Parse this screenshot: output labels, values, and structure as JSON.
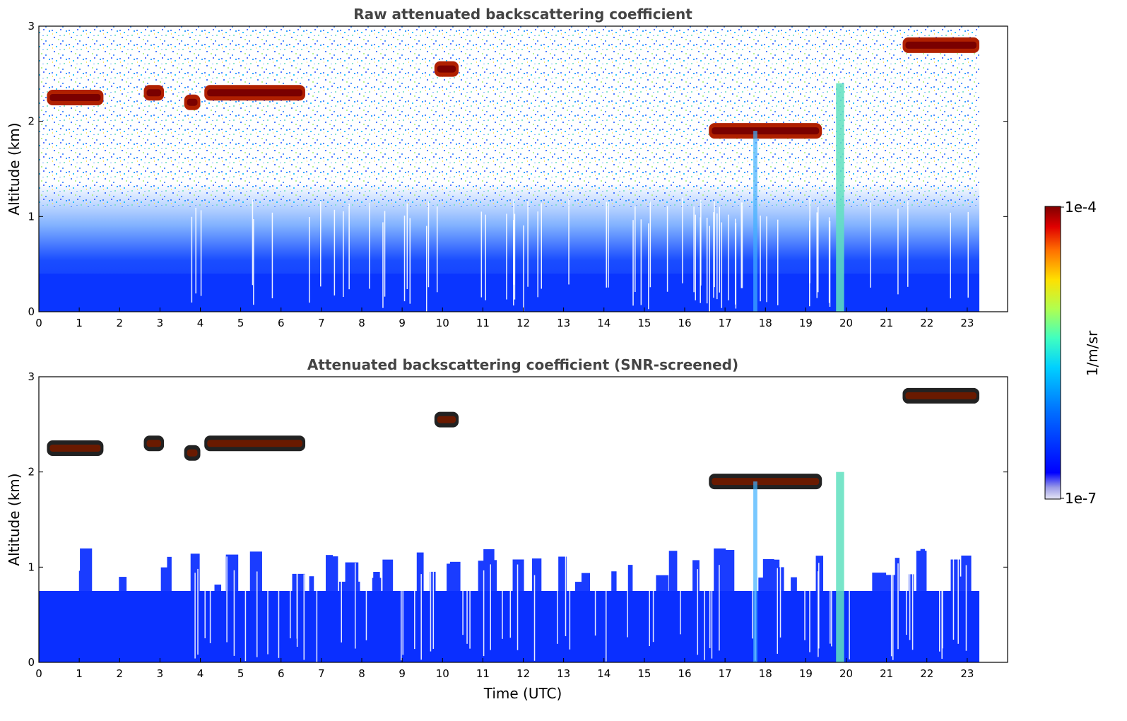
{
  "chart_data": [
    {
      "type": "heatmap",
      "title": "Raw attenuated backscattering coefficient",
      "xlabel": "",
      "ylabel": "Altitude (km)",
      "xlim": [
        0,
        24
      ],
      "ylim": [
        0,
        3
      ],
      "x_ticks": [
        0,
        1,
        2,
        3,
        4,
        5,
        6,
        7,
        8,
        9,
        10,
        11,
        12,
        13,
        14,
        15,
        16,
        17,
        18,
        19,
        20,
        21,
        22,
        23
      ],
      "y_ticks": [
        0,
        1,
        2,
        3
      ],
      "data_end_hour": 23.3,
      "grid": false,
      "features": {
        "boundary_layer_top_km": 0.4,
        "noise_floor_km": 1.0,
        "cloud_layers": [
          {
            "t_start": 0.2,
            "t_end": 1.6,
            "alt_km": 2.25
          },
          {
            "t_start": 2.6,
            "t_end": 3.1,
            "alt_km": 2.3
          },
          {
            "t_start": 3.6,
            "t_end": 4.0,
            "alt_km": 2.2
          },
          {
            "t_start": 4.1,
            "t_end": 6.6,
            "alt_km": 2.3
          },
          {
            "t_start": 9.8,
            "t_end": 10.4,
            "alt_km": 2.55
          },
          {
            "t_start": 16.6,
            "t_end": 19.4,
            "alt_km": 1.9
          },
          {
            "t_start": 21.4,
            "t_end": 23.3,
            "alt_km": 2.8
          }
        ]
      }
    },
    {
      "type": "heatmap",
      "title": "Attenuated backscattering coefficient (SNR-screened)",
      "xlabel": "Time (UTC)",
      "ylabel": "Altitude (km)",
      "xlim": [
        0,
        24
      ],
      "ylim": [
        0,
        3
      ],
      "x_ticks": [
        0,
        1,
        2,
        3,
        4,
        5,
        6,
        7,
        8,
        9,
        10,
        11,
        12,
        13,
        14,
        15,
        16,
        17,
        18,
        19,
        20,
        21,
        22,
        23
      ],
      "y_ticks": [
        0,
        1,
        2,
        3
      ],
      "data_end_hour": 23.3,
      "grid": false,
      "features": {
        "boundary_layer_top_km": 0.75
      }
    }
  ],
  "colorbar": {
    "label": "1/m/sr",
    "max_label": "1e-4",
    "min_label": "1e-7",
    "scale": "log",
    "colormap": "jet"
  }
}
